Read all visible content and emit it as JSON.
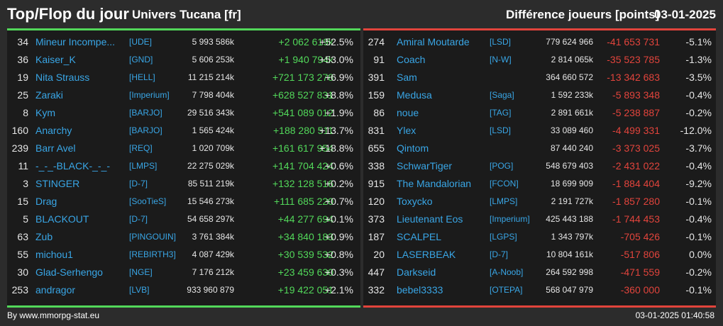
{
  "header": {
    "title": "Top/Flop du jour",
    "universe": "Univers Tucana [fr]",
    "diff_label": "Différence joueurs [points]",
    "date": "03-01-2025"
  },
  "colors": {
    "top": "#52d85a",
    "flop": "#e2443c",
    "name": "#39a6e6"
  },
  "top": [
    {
      "rank": "34",
      "name": "Mineur Incompe...",
      "ally": "[UDE]",
      "points": "5 993 586k",
      "diff": "+2 062 619k",
      "pct": "+52.5%"
    },
    {
      "rank": "36",
      "name": "Kaiser_K",
      "ally": "[GND]",
      "points": "5 606 253k",
      "diff": "+1 940 794k",
      "pct": "+53.0%"
    },
    {
      "rank": "19",
      "name": "Nita Strauss",
      "ally": "[HELL]",
      "points": "11 215 214k",
      "diff": "+721 173 278",
      "pct": "+6.9%"
    },
    {
      "rank": "25",
      "name": "Zaraki",
      "ally": "[Imperium]",
      "points": "7 798 404k",
      "diff": "+628 527 831",
      "pct": "+8.8%"
    },
    {
      "rank": "8",
      "name": "Kym",
      "ally": "[BARJO]",
      "points": "29 516 343k",
      "diff": "+541 089 012",
      "pct": "+1.9%"
    },
    {
      "rank": "160",
      "name": "Anarchy",
      "ally": "[BARJO]",
      "points": "1 565 424k",
      "diff": "+188 280 511",
      "pct": "+13.7%"
    },
    {
      "rank": "239",
      "name": "Barr Avel",
      "ally": "[REQ]",
      "points": "1 020 709k",
      "diff": "+161 617 954",
      "pct": "+18.8%"
    },
    {
      "rank": "11",
      "name": "-_-_-BLACK-_-_-",
      "ally": "[LMPS]",
      "points": "22 275 029k",
      "diff": "+141 704 424",
      "pct": "+0.6%"
    },
    {
      "rank": "3",
      "name": "STINGER",
      "ally": "[D-7]",
      "points": "85 511 219k",
      "diff": "+132 128 516",
      "pct": "+0.2%"
    },
    {
      "rank": "15",
      "name": "Drag",
      "ally": "[SooTieS]",
      "points": "15 546 273k",
      "diff": "+111 685 220",
      "pct": "+0.7%"
    },
    {
      "rank": "5",
      "name": "BLACKOUT",
      "ally": "[D-7]",
      "points": "54 658 297k",
      "diff": "+44 277 694",
      "pct": "+0.1%"
    },
    {
      "rank": "63",
      "name": "Zub",
      "ally": "[PINGOUIN]",
      "points": "3 761 384k",
      "diff": "+34 840 183",
      "pct": "+0.9%"
    },
    {
      "rank": "55",
      "name": "michou1",
      "ally": "[REBIRTH3]",
      "points": "4 087 429k",
      "diff": "+30 539 532",
      "pct": "+0.8%"
    },
    {
      "rank": "30",
      "name": "Glad-Serhengo",
      "ally": "[NGE]",
      "points": "7 176 212k",
      "diff": "+23 459 630",
      "pct": "+0.3%"
    },
    {
      "rank": "253",
      "name": "andragor",
      "ally": "[LVB]",
      "points": "933 960 879",
      "diff": "+19 422 051",
      "pct": "+2.1%"
    }
  ],
  "flop": [
    {
      "rank": "274",
      "name": "Amiral Moutarde",
      "ally": "[LSD]",
      "points": "779 624 966",
      "diff": "-41 653 731",
      "pct": "-5.1%"
    },
    {
      "rank": "91",
      "name": "Coach",
      "ally": "[N-W]",
      "points": "2 814 065k",
      "diff": "-35 523 785",
      "pct": "-1.3%"
    },
    {
      "rank": "391",
      "name": "Sam",
      "ally": "",
      "points": "364 660 572",
      "diff": "-13 342 683",
      "pct": "-3.5%"
    },
    {
      "rank": "159",
      "name": "Medusa",
      "ally": "[Saga]",
      "points": "1 592 233k",
      "diff": "-5 893 348",
      "pct": "-0.4%"
    },
    {
      "rank": "86",
      "name": "noue",
      "ally": "[TAG]",
      "points": "2 891 661k",
      "diff": "-5 238 887",
      "pct": "-0.2%"
    },
    {
      "rank": "831",
      "name": "Ylex",
      "ally": "[LSD]",
      "points": "33 089 460",
      "diff": "-4 499 331",
      "pct": "-12.0%"
    },
    {
      "rank": "655",
      "name": "Qintom",
      "ally": "",
      "points": "87 440 240",
      "diff": "-3 373 025",
      "pct": "-3.7%"
    },
    {
      "rank": "338",
      "name": "SchwarTiger",
      "ally": "[POG]",
      "points": "548 679 403",
      "diff": "-2 431 022",
      "pct": "-0.4%"
    },
    {
      "rank": "915",
      "name": "The Mandalorian",
      "ally": "[FCON]",
      "points": "18 699 909",
      "diff": "-1 884 404",
      "pct": "-9.2%"
    },
    {
      "rank": "120",
      "name": "Toxycko",
      "ally": "[LMPS]",
      "points": "2 191 727k",
      "diff": "-1 857 280",
      "pct": "-0.1%"
    },
    {
      "rank": "373",
      "name": "Lieutenant Eos",
      "ally": "[Imperium]",
      "points": "425 443 188",
      "diff": "-1 744 453",
      "pct": "-0.4%"
    },
    {
      "rank": "187",
      "name": "SCALPEL",
      "ally": "[LGPS]",
      "points": "1 343 797k",
      "diff": "-705 426",
      "pct": "-0.1%"
    },
    {
      "rank": "20",
      "name": "LASERBEAK",
      "ally": "[D-7]",
      "points": "10 804 161k",
      "diff": "-517 806",
      "pct": "0.0%"
    },
    {
      "rank": "447",
      "name": "Darkseid",
      "ally": "[A-Noob]",
      "points": "264 592 998",
      "diff": "-471 559",
      "pct": "-0.2%"
    },
    {
      "rank": "332",
      "name": "bebel3333",
      "ally": "[OTEPA]",
      "points": "568 047 979",
      "diff": "-360 000",
      "pct": "-0.1%"
    }
  ],
  "footer": {
    "credit": "By www.mmorpg-stat.eu",
    "timestamp": "03-01-2025 01:40:58"
  }
}
